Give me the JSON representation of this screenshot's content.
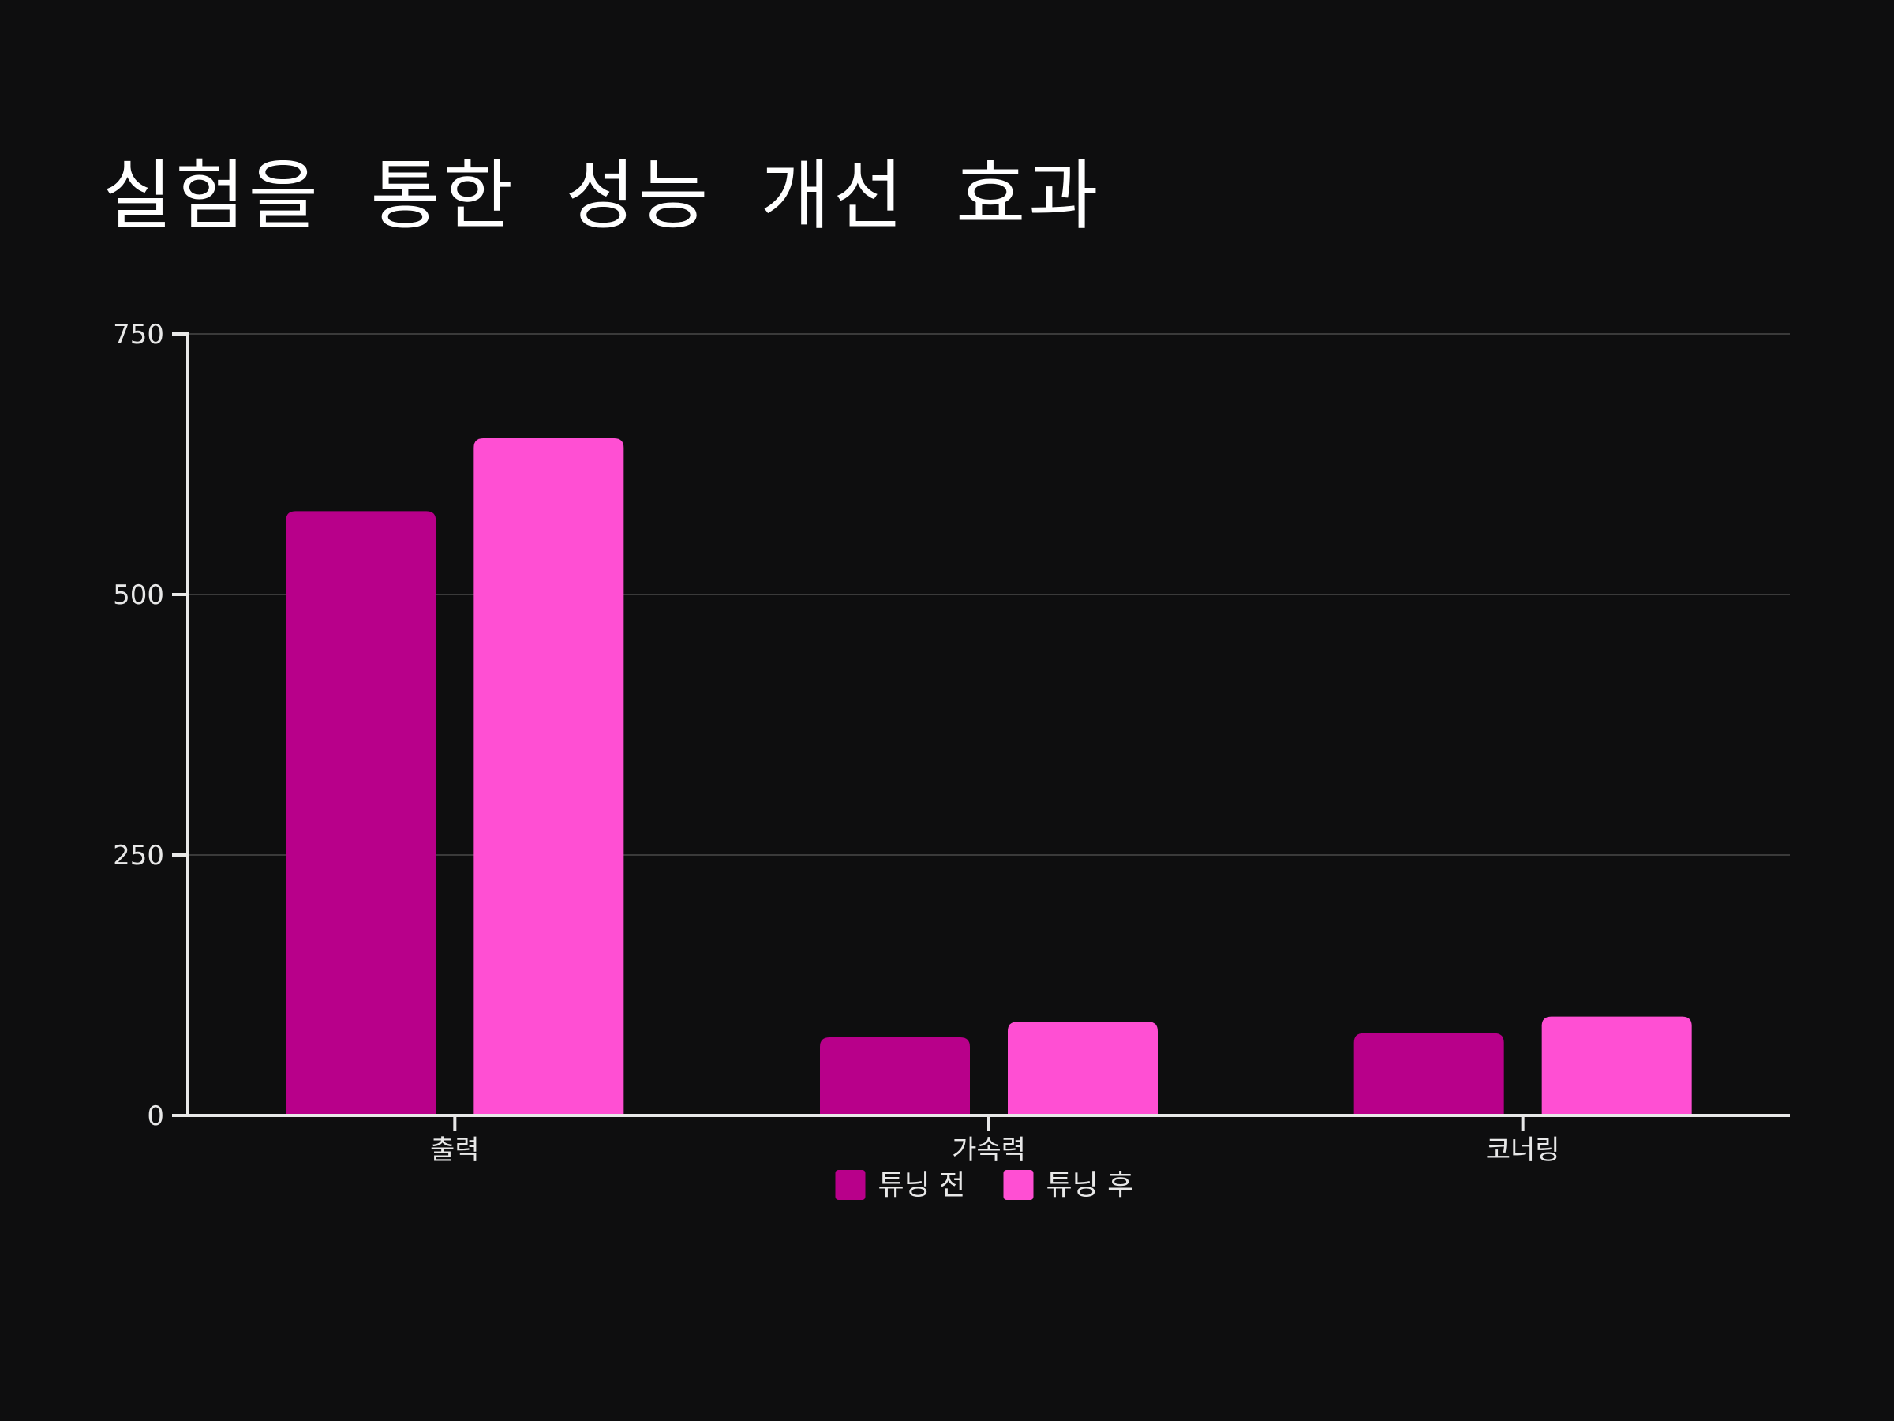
{
  "chart_data": {
    "type": "bar",
    "title": "실험을 통한 성능 개선 효과",
    "xlabel": "",
    "ylabel": "",
    "categories": [
      "출력",
      "가속력",
      "코너링"
    ],
    "series": [
      {
        "name": "튜닝 전",
        "values": [
          580,
          75,
          79
        ],
        "color": "#b8008a"
      },
      {
        "name": "튜닝 후",
        "values": [
          650,
          90,
          95
        ],
        "color": "#ff4fd3"
      }
    ],
    "ylim": [
      0,
      750
    ],
    "yticks": [
      0,
      250,
      500,
      750
    ],
    "grid": true,
    "legend_position": "bottom-center",
    "background": "#0e0e0f"
  }
}
